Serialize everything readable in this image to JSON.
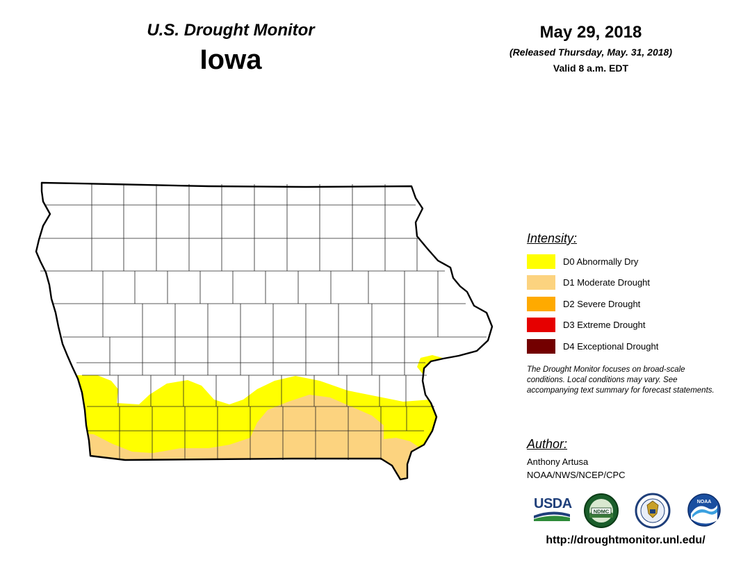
{
  "header": {
    "monitor_title": "U.S. Drought Monitor",
    "state": "Iowa",
    "date": "May 29, 2018",
    "released": "(Released Thursday, May. 31, 2018)",
    "valid": "Valid 8 a.m. EDT"
  },
  "legend": {
    "title": "Intensity:",
    "items": [
      {
        "label": "D0 Abnormally Dry",
        "color": "#ffff00"
      },
      {
        "label": "D1 Moderate Drought",
        "color": "#fcd37f"
      },
      {
        "label": "D2 Severe Drought",
        "color": "#ffaa00"
      },
      {
        "label": "D3 Extreme Drought",
        "color": "#e60000"
      },
      {
        "label": "D4 Exceptional Drought",
        "color": "#730000"
      }
    ],
    "note": "The Drought Monitor focuses on broad-scale conditions. Local conditions may vary. See accompanying text summary for forecast statements."
  },
  "author": {
    "title": "Author:",
    "name": "Anthony Artusa",
    "org": "NOAA/NWS/NCEP/CPC"
  },
  "logos": {
    "usda": "USDA",
    "ndmc": "NDMC",
    "doc": "doc-seal-icon",
    "noaa": "NOAA"
  },
  "url": "http://droughtmonitor.unl.edu/"
}
